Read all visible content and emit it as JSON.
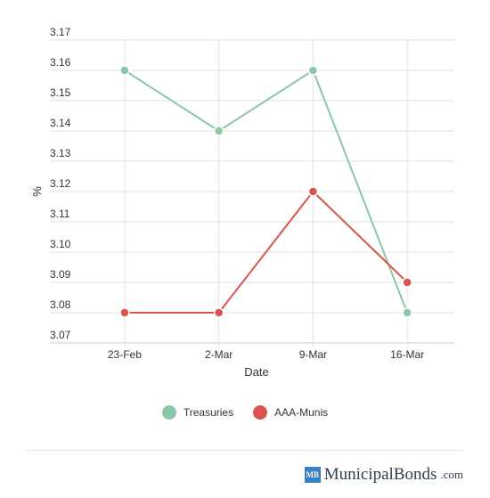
{
  "chart_data": {
    "type": "line",
    "categories": [
      "23-Feb",
      "2-Mar",
      "9-Mar",
      "16-Mar"
    ],
    "series": [
      {
        "name": "Treasuries",
        "color": "#8cc6a6",
        "values": [
          3.16,
          3.14,
          3.16,
          3.08
        ]
      },
      {
        "name": "AAA-Munis",
        "color": "#d9534f",
        "values": [
          3.08,
          3.08,
          3.12,
          3.09
        ]
      }
    ],
    "xlabel": "Date",
    "ylabel": "%",
    "ylim": [
      3.07,
      3.17
    ],
    "yticks": [
      "3.07",
      "3.08",
      "3.09",
      "3.10",
      "3.11",
      "3.12",
      "3.13",
      "3.14",
      "3.15",
      "3.16",
      "3.17"
    ],
    "grid": true,
    "legend_position": "bottom"
  },
  "legend": {
    "items": [
      {
        "label": "Treasuries",
        "color": "#8cc6a6"
      },
      {
        "label": "AAA-Munis",
        "color": "#d9534f"
      }
    ]
  },
  "branding": {
    "badge": "MB",
    "name": "MunicipalBonds",
    "tld": ".com"
  }
}
